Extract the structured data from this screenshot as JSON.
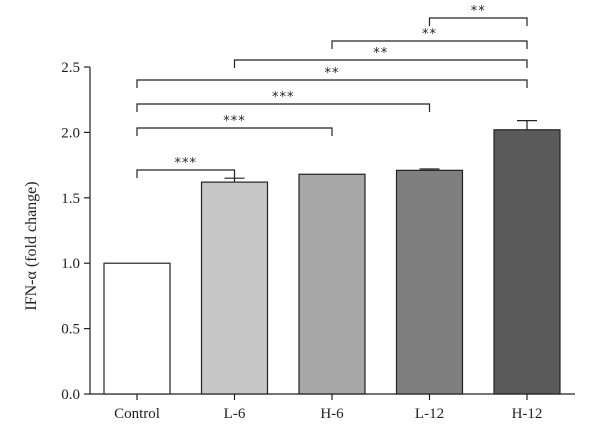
{
  "chart_data": {
    "type": "bar",
    "categories": [
      "Control",
      "L-6",
      "H-6",
      "L-12",
      "H-12"
    ],
    "values": [
      1.0,
      1.62,
      1.68,
      1.71,
      2.02
    ],
    "errors": [
      0,
      0.03,
      0.0,
      0.01,
      0.07
    ],
    "bar_colors": [
      "#ffffff",
      "#c6c6c6",
      "#a7a7a7",
      "#7f7f7f",
      "#5a5a5a"
    ],
    "title": "",
    "xlabel": "",
    "ylabel": "IFN-α (fold change)",
    "ylim": [
      0,
      2.5
    ],
    "yticks": [
      "0.0",
      "0.5",
      "1.0",
      "1.5",
      "2.0",
      "2.5"
    ],
    "grid": false,
    "significance": [
      {
        "from": 0,
        "to": 1,
        "label": "***"
      },
      {
        "from": 0,
        "to": 2,
        "label": "***"
      },
      {
        "from": 0,
        "to": 3,
        "label": "***"
      },
      {
        "from": 0,
        "to": 4,
        "label": "**"
      },
      {
        "from": 1,
        "to": 4,
        "label": "**"
      },
      {
        "from": 2,
        "to": 4,
        "label": "**"
      },
      {
        "from": 3,
        "to": 4,
        "label": "**"
      }
    ]
  }
}
